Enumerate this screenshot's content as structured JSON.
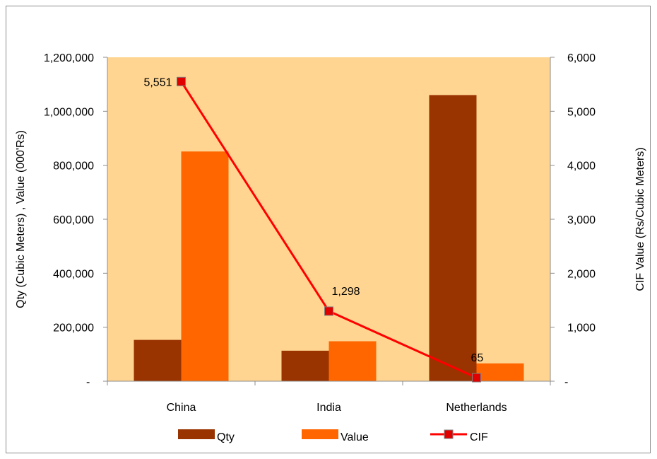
{
  "chart_data": {
    "type": "bar",
    "categories": [
      "China",
      "India",
      "Netherlands"
    ],
    "series": [
      {
        "name": "Qty",
        "axis": "left",
        "type": "bar",
        "color": "#993300",
        "values": [
          153000,
          113000,
          1060000
        ]
      },
      {
        "name": "Value",
        "axis": "left",
        "type": "bar",
        "color": "#FF6600",
        "values": [
          851000,
          148000,
          66000
        ]
      },
      {
        "name": "CIF",
        "axis": "right",
        "type": "line",
        "color": "#FF0000",
        "marker_color": "#E00000",
        "values": [
          5551,
          1298,
          65
        ],
        "labels": [
          "5,551",
          "1,298",
          "65"
        ]
      }
    ],
    "ylabel_left": "Qty (Cubic Meters) , Value (000'Rs)",
    "ylabel_right": "CIF Value (Rs/Cubic Meters)",
    "ylim_left": [
      0,
      1200000
    ],
    "ylim_right": [
      0,
      6000
    ],
    "left_ticks": [
      "-",
      "200,000",
      "400,000",
      "600,000",
      "800,000",
      "1,000,000",
      "1,200,000"
    ],
    "right_ticks": [
      "-",
      "1,000",
      "2,000",
      "3,000",
      "4,000",
      "5,000",
      "6,000"
    ],
    "plot_background": "#FFD591",
    "grid": false,
    "legend_position": "bottom",
    "legend": [
      "Qty",
      "Value",
      "CIF"
    ]
  }
}
